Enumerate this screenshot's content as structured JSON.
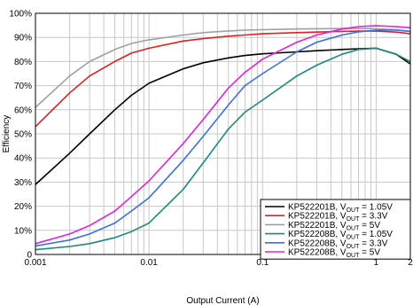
{
  "chart_data": {
    "type": "line",
    "title": "",
    "xlabel": "Output Current (A)",
    "ylabel": "Efficiency",
    "x_scale": "log",
    "xlim": [
      0.001,
      2
    ],
    "ylim": [
      0,
      100
    ],
    "x_ticks": [
      {
        "value": 0.001,
        "label": "0.001"
      },
      {
        "value": 0.01,
        "label": "0.01"
      },
      {
        "value": 0.1,
        "label": "0.1"
      },
      {
        "value": 1,
        "label": "1"
      },
      {
        "value": 2,
        "label": "2"
      }
    ],
    "y_ticks": [
      {
        "value": 0,
        "label": "0"
      },
      {
        "value": 10,
        "label": "10%"
      },
      {
        "value": 20,
        "label": "20%"
      },
      {
        "value": 30,
        "label": "30%"
      },
      {
        "value": 40,
        "label": "40%"
      },
      {
        "value": 50,
        "label": "50%"
      },
      {
        "value": 60,
        "label": "60%"
      },
      {
        "value": 70,
        "label": "70%"
      },
      {
        "value": 80,
        "label": "80%"
      },
      {
        "value": 90,
        "label": "90%"
      },
      {
        "value": 100,
        "label": "100%"
      }
    ],
    "grid": true,
    "legend_position": "bottom-right",
    "series": [
      {
        "name": "KP522201B, V_OUT = 1.05V",
        "legend_prefix": "KP522201B, V",
        "legend_sub": "OUT",
        "legend_suffix": " = 1.05V",
        "color": "#000000",
        "x": [
          0.001,
          0.002,
          0.003,
          0.005,
          0.007,
          0.01,
          0.02,
          0.03,
          0.05,
          0.07,
          0.1,
          0.2,
          0.3,
          0.5,
          0.7,
          1,
          1.5,
          2
        ],
        "y": [
          29,
          42,
          50,
          60,
          66,
          71,
          77,
          79.5,
          81.5,
          82.5,
          83.2,
          84,
          84.5,
          85,
          85.3,
          85.5,
          83,
          79
        ]
      },
      {
        "name": "KP522201B, V_OUT = 3.3V",
        "legend_prefix": "KP522201B, V",
        "legend_sub": "OUT",
        "legend_suffix": " = 3.3V",
        "color": "#e02020",
        "x": [
          0.001,
          0.002,
          0.003,
          0.005,
          0.007,
          0.01,
          0.02,
          0.03,
          0.05,
          0.07,
          0.1,
          0.2,
          0.3,
          0.5,
          0.7,
          1,
          1.5,
          2
        ],
        "y": [
          53,
          67,
          74,
          80,
          83.5,
          85.5,
          88.5,
          89.5,
          90.5,
          91,
          91.5,
          92,
          92.2,
          92.5,
          92.6,
          92.6,
          92.2,
          91.5
        ]
      },
      {
        "name": "KP522201B, V_OUT = 5V",
        "legend_prefix": "KP522201B, V",
        "legend_sub": "OUT",
        "legend_suffix": " = 5V",
        "color": "#a0a0a0",
        "x": [
          0.001,
          0.002,
          0.003,
          0.005,
          0.007,
          0.01,
          0.02,
          0.03,
          0.05,
          0.07,
          0.1,
          0.2,
          0.3,
          0.5,
          0.7,
          1,
          1.5,
          2
        ],
        "y": [
          61,
          74,
          80,
          85,
          87.5,
          89,
          91,
          92,
          92.7,
          93,
          93.2,
          93.5,
          93.6,
          93.7,
          93.7,
          93.6,
          93.2,
          92.5
        ]
      },
      {
        "name": "KP522208B, V_OUT = 1.05V",
        "legend_prefix": "KP522208B, V",
        "legend_sub": "OUT",
        "legend_suffix": " = 1.05V",
        "color": "#1a8a80",
        "x": [
          0.001,
          0.002,
          0.003,
          0.005,
          0.007,
          0.01,
          0.02,
          0.03,
          0.05,
          0.07,
          0.1,
          0.2,
          0.3,
          0.5,
          0.7,
          1,
          1.5,
          2
        ],
        "y": [
          2,
          3.3,
          4.5,
          7,
          9.5,
          13,
          27,
          38,
          52,
          59,
          64,
          74,
          78.5,
          83,
          85,
          85.5,
          83,
          80
        ]
      },
      {
        "name": "KP522208B, V_OUT = 3.3V",
        "legend_prefix": "KP522208B, V",
        "legend_sub": "OUT",
        "legend_suffix": " = 3.3V",
        "color": "#3a6ee8",
        "x": [
          0.001,
          0.002,
          0.003,
          0.005,
          0.007,
          0.01,
          0.02,
          0.03,
          0.05,
          0.07,
          0.1,
          0.2,
          0.3,
          0.5,
          0.7,
          1,
          1.5,
          2
        ],
        "y": [
          3.5,
          6,
          8.5,
          13,
          18,
          23.5,
          39,
          49,
          62,
          70,
          75,
          84,
          88,
          91,
          92.3,
          93,
          93,
          92.5
        ]
      },
      {
        "name": "KP522208B, V_OUT = 5V",
        "legend_prefix": "KP522208B, V",
        "legend_sub": "OUT",
        "legend_suffix": " = 5V",
        "color": "#e020e0",
        "x": [
          0.001,
          0.002,
          0.003,
          0.005,
          0.007,
          0.01,
          0.02,
          0.03,
          0.05,
          0.07,
          0.1,
          0.2,
          0.3,
          0.5,
          0.7,
          1,
          1.5,
          2
        ],
        "y": [
          4.5,
          8.5,
          12,
          18,
          24,
          30.5,
          46,
          56,
          69,
          75.5,
          81,
          88,
          91,
          93.5,
          94.5,
          94.8,
          94.5,
          94
        ]
      }
    ]
  }
}
